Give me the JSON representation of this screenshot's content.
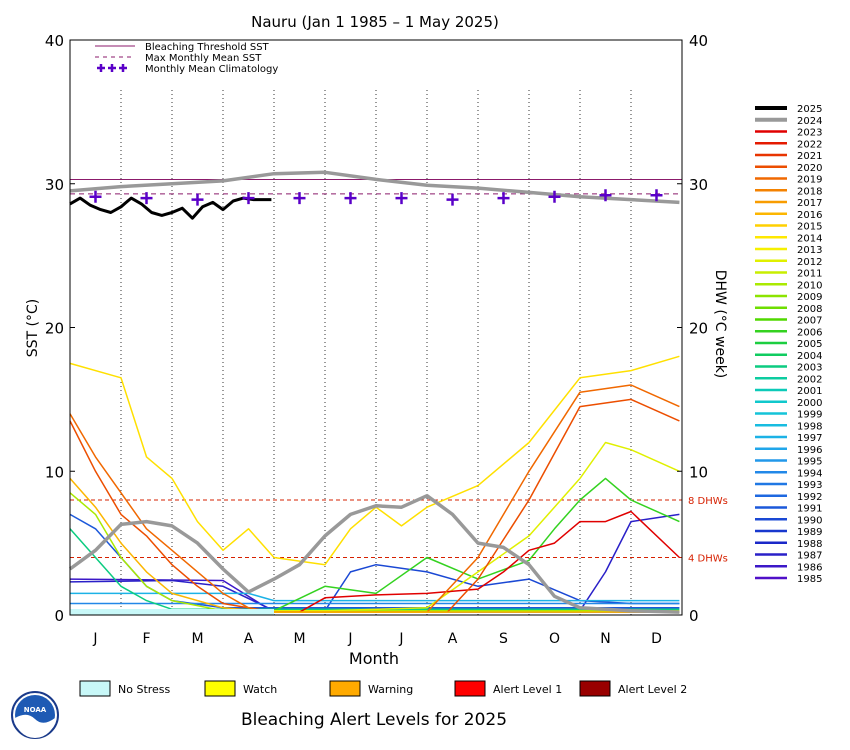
{
  "chart_data": {
    "type": "line",
    "title": "Nauru      (Jan 1 1985 – 1 May 2025)",
    "xlabel": "Month",
    "ylabel_left": "SST (°C)",
    "ylabel_right": "DHW (°C week)",
    "ylim": [
      0,
      40
    ],
    "yticks": [
      "0",
      "10",
      "20",
      "30",
      "40"
    ],
    "grid": "vertical dotted lines between months",
    "months": [
      "J",
      "F",
      "M",
      "A",
      "M",
      "J",
      "J",
      "A",
      "S",
      "O",
      "N",
      "D"
    ],
    "bleaching_threshold_sst": 30.3,
    "max_monthly_mean_sst": 29.3,
    "monthly_mean_climatology": [
      29.1,
      29.0,
      28.9,
      29.0,
      29.0,
      29.0,
      29.0,
      28.9,
      29.0,
      29.1,
      29.2,
      29.2
    ],
    "dhw_reference_lines": [
      {
        "value": 8,
        "label": "8 DHWs",
        "color": "#d62000"
      },
      {
        "value": 4,
        "label": "4 DHWs",
        "color": "#d62000"
      }
    ],
    "top_legend": [
      {
        "label": "Bleaching Threshold SST",
        "style": "solid",
        "color": "#8b1a6b"
      },
      {
        "label": "Max Monthly Mean SST",
        "style": "dashed",
        "color": "#8b1a6b"
      },
      {
        "label": "Monthly Mean Climatology",
        "style": "plus",
        "color": "#5a00c8"
      }
    ],
    "year_legend": [
      {
        "year": "2025",
        "color": "#000000"
      },
      {
        "year": "2024",
        "color": "#999999"
      },
      {
        "year": "2023",
        "color": "#e00000"
      },
      {
        "year": "2022",
        "color": "#e41a00"
      },
      {
        "year": "2021",
        "color": "#e83400"
      },
      {
        "year": "2020",
        "color": "#ec4e00"
      },
      {
        "year": "2019",
        "color": "#f06800"
      },
      {
        "year": "2018",
        "color": "#f48200"
      },
      {
        "year": "2017",
        "color": "#f89c00"
      },
      {
        "year": "2016",
        "color": "#fcb600"
      },
      {
        "year": "2015",
        "color": "#ffd000"
      },
      {
        "year": "2014",
        "color": "#ffe800"
      },
      {
        "year": "2013",
        "color": "#f6f000"
      },
      {
        "year": "2012",
        "color": "#e0f000"
      },
      {
        "year": "2011",
        "color": "#c8ee00"
      },
      {
        "year": "2010",
        "color": "#aaea00"
      },
      {
        "year": "2009",
        "color": "#8ce400"
      },
      {
        "year": "2008",
        "color": "#6ede00"
      },
      {
        "year": "2007",
        "color": "#50d800"
      },
      {
        "year": "2006",
        "color": "#34d220"
      },
      {
        "year": "2005",
        "color": "#1cce40"
      },
      {
        "year": "2004",
        "color": "#10cc60"
      },
      {
        "year": "2003",
        "color": "#0ccc80"
      },
      {
        "year": "2002",
        "color": "#0ccca0"
      },
      {
        "year": "2001",
        "color": "#0ccab8"
      },
      {
        "year": "2000",
        "color": "#10c8cc"
      },
      {
        "year": "1999",
        "color": "#14c4d8"
      },
      {
        "year": "1998",
        "color": "#18bce0"
      },
      {
        "year": "1997",
        "color": "#1cb2e6"
      },
      {
        "year": "1996",
        "color": "#20a6ea"
      },
      {
        "year": "1995",
        "color": "#2298ea"
      },
      {
        "year": "1994",
        "color": "#2288e8"
      },
      {
        "year": "1993",
        "color": "#2078e4"
      },
      {
        "year": "1992",
        "color": "#1e68e0"
      },
      {
        "year": "1991",
        "color": "#1c58da"
      },
      {
        "year": "1990",
        "color": "#1a48d4"
      },
      {
        "year": "1989",
        "color": "#1838ce"
      },
      {
        "year": "1988",
        "color": "#1a28c8"
      },
      {
        "year": "1987",
        "color": "#2a20c8"
      },
      {
        "year": "1986",
        "color": "#3c18c8"
      },
      {
        "year": "1985",
        "color": "#5010c8"
      }
    ],
    "series": [
      {
        "name": "2025",
        "role": "sst",
        "color": "#000000",
        "width": 3,
        "points": [
          [
            0.0,
            28.6
          ],
          [
            0.2,
            29.0
          ],
          [
            0.4,
            28.5
          ],
          [
            0.6,
            28.2
          ],
          [
            0.8,
            28.0
          ],
          [
            1.0,
            28.4
          ],
          [
            1.2,
            29.0
          ],
          [
            1.4,
            28.6
          ],
          [
            1.6,
            28.0
          ],
          [
            1.8,
            27.8
          ],
          [
            2.0,
            28.0
          ],
          [
            2.2,
            28.3
          ],
          [
            2.4,
            27.6
          ],
          [
            2.6,
            28.4
          ],
          [
            2.8,
            28.7
          ],
          [
            3.0,
            28.2
          ],
          [
            3.2,
            28.8
          ],
          [
            3.4,
            29.0
          ],
          [
            3.6,
            28.9
          ],
          [
            3.95,
            28.9
          ]
        ]
      },
      {
        "name": "2024",
        "role": "sst",
        "color": "#999999",
        "width": 3.5,
        "points": [
          [
            0,
            29.5
          ],
          [
            1,
            29.8
          ],
          [
            2,
            30.0
          ],
          [
            3,
            30.2
          ],
          [
            4,
            30.7
          ],
          [
            5,
            30.8
          ],
          [
            6,
            30.3
          ],
          [
            7,
            29.9
          ],
          [
            8,
            29.7
          ],
          [
            9,
            29.4
          ],
          [
            10,
            29.1
          ],
          [
            11,
            28.9
          ],
          [
            11.95,
            28.7
          ]
        ]
      },
      {
        "name": "2024",
        "role": "dhw",
        "color": "#999999",
        "width": 3.5,
        "points": [
          [
            0,
            3.2
          ],
          [
            0.5,
            4.5
          ],
          [
            1,
            6.3
          ],
          [
            1.5,
            6.5
          ],
          [
            2,
            6.2
          ],
          [
            2.5,
            5.0
          ],
          [
            3,
            3.2
          ],
          [
            3.5,
            1.6
          ],
          [
            4,
            2.5
          ],
          [
            4.5,
            3.5
          ],
          [
            5,
            5.5
          ],
          [
            5.5,
            7.0
          ],
          [
            6,
            7.6
          ],
          [
            6.5,
            7.5
          ],
          [
            7,
            8.3
          ],
          [
            7.5,
            7.0
          ],
          [
            8,
            5.0
          ],
          [
            8.5,
            4.7
          ],
          [
            9,
            3.5
          ],
          [
            9.5,
            1.3
          ],
          [
            10,
            0.5
          ],
          [
            11,
            0.3
          ],
          [
            11.95,
            0.2
          ]
        ]
      },
      {
        "name": "2015",
        "role": "dhw",
        "color": "#ffe000",
        "width": 1.5,
        "points": [
          [
            0,
            17.5
          ],
          [
            1,
            16.5
          ],
          [
            1.5,
            11
          ],
          [
            2,
            9.5
          ],
          [
            2.5,
            6.5
          ],
          [
            3,
            4.5
          ],
          [
            3.5,
            6
          ],
          [
            4,
            4
          ],
          [
            5,
            3.5
          ],
          [
            5.5,
            6
          ],
          [
            6,
            7.5
          ],
          [
            6.5,
            6.2
          ],
          [
            7,
            7.5
          ],
          [
            8,
            9
          ],
          [
            9,
            12
          ],
          [
            10,
            16.5
          ],
          [
            11,
            17
          ],
          [
            11.95,
            18
          ]
        ]
      },
      {
        "name": "2016",
        "role": "dhw",
        "color": "#fcb600",
        "width": 1.5,
        "points": [
          [
            0,
            9.5
          ],
          [
            0.5,
            7.5
          ],
          [
            1,
            5
          ],
          [
            1.5,
            3
          ],
          [
            2,
            1.5
          ],
          [
            3,
            0.5
          ],
          [
            4,
            0.2
          ],
          [
            11.95,
            0.2
          ]
        ]
      },
      {
        "name": "2019",
        "role": "dhw",
        "color": "#f06800",
        "width": 1.5,
        "points": [
          [
            0,
            14
          ],
          [
            0.5,
            11
          ],
          [
            1,
            8.5
          ],
          [
            1.5,
            6
          ],
          [
            2,
            4.5
          ],
          [
            2.5,
            3
          ],
          [
            3,
            1.5
          ],
          [
            3.5,
            0.5
          ],
          [
            4,
            0.2
          ],
          [
            7,
            0.2
          ],
          [
            8,
            4
          ],
          [
            9,
            10
          ],
          [
            10,
            15.5
          ],
          [
            11,
            16
          ],
          [
            11.95,
            14.5
          ]
        ]
      },
      {
        "name": "2020",
        "role": "dhw",
        "color": "#ec4e00",
        "width": 1.5,
        "points": [
          [
            0,
            13.5
          ],
          [
            0.5,
            10
          ],
          [
            1,
            7
          ],
          [
            1.5,
            5.5
          ],
          [
            2,
            3.5
          ],
          [
            2.5,
            2
          ],
          [
            3,
            0.8
          ],
          [
            4,
            0.2
          ],
          [
            7.4,
            0.2
          ],
          [
            8,
            2.5
          ],
          [
            9,
            8
          ],
          [
            10,
            14.5
          ],
          [
            11,
            15
          ],
          [
            11.95,
            13.5
          ]
        ]
      },
      {
        "name": "2023",
        "role": "dhw",
        "color": "#e00000",
        "width": 1.5,
        "points": [
          [
            0,
            0.2
          ],
          [
            4.5,
            0.2
          ],
          [
            5,
            1.2
          ],
          [
            6,
            1.4
          ],
          [
            7,
            1.5
          ],
          [
            8,
            1.8
          ],
          [
            8.5,
            3
          ],
          [
            9,
            4.5
          ],
          [
            9.5,
            5
          ],
          [
            10,
            6.5
          ],
          [
            10.5,
            6.5
          ],
          [
            11,
            7.2
          ],
          [
            11.95,
            4
          ]
        ]
      },
      {
        "name": "2012",
        "role": "dhw",
        "color": "#e0f000",
        "width": 1.5,
        "points": [
          [
            0,
            0.3
          ],
          [
            5,
            0.3
          ],
          [
            7,
            0.5
          ],
          [
            8,
            3
          ],
          [
            9,
            5.5
          ],
          [
            10,
            9.5
          ],
          [
            10.5,
            12
          ],
          [
            11,
            11.5
          ],
          [
            11.95,
            10
          ]
        ]
      },
      {
        "name": "2010",
        "role": "dhw",
        "color": "#aaea00",
        "width": 1.5,
        "points": [
          [
            0,
            8.5
          ],
          [
            0.5,
            7
          ],
          [
            1,
            4
          ],
          [
            1.5,
            2
          ],
          [
            2,
            1
          ],
          [
            3,
            0.3
          ],
          [
            11.95,
            0.3
          ]
        ]
      },
      {
        "name": "2006",
        "role": "dhw",
        "color": "#34d220",
        "width": 1.5,
        "points": [
          [
            0,
            0.3
          ],
          [
            4,
            0.3
          ],
          [
            5,
            2
          ],
          [
            6,
            1.5
          ],
          [
            7,
            4
          ],
          [
            8,
            2.5
          ],
          [
            9,
            3.8
          ],
          [
            9.5,
            6
          ],
          [
            10,
            8
          ],
          [
            10.5,
            9.5
          ],
          [
            11,
            8
          ],
          [
            11.95,
            6.5
          ]
        ]
      },
      {
        "name": "2003",
        "role": "dhw",
        "color": "#0ccc80",
        "width": 1.5,
        "points": [
          [
            0,
            6
          ],
          [
            0.5,
            4
          ],
          [
            1,
            2
          ],
          [
            1.5,
            1
          ],
          [
            2,
            0.4
          ],
          [
            11.95,
            0.4
          ]
        ]
      },
      {
        "name": "1997",
        "role": "dhw",
        "color": "#1cb2e6",
        "width": 1.5,
        "points": [
          [
            0,
            1.5
          ],
          [
            3.5,
            1.5
          ],
          [
            4,
            1.0
          ],
          [
            11.95,
            1.0
          ]
        ]
      },
      {
        "name": "1994",
        "role": "dhw",
        "color": "#2288e8",
        "width": 1.5,
        "points": [
          [
            0,
            0.8
          ],
          [
            11.95,
            0.8
          ]
        ]
      },
      {
        "name": "1991",
        "role": "dhw",
        "color": "#1c58da",
        "width": 1.5,
        "points": [
          [
            0,
            7
          ],
          [
            0.5,
            6
          ],
          [
            1,
            4
          ],
          [
            1.5,
            2
          ],
          [
            2,
            1
          ],
          [
            3,
            0.5
          ],
          [
            11.95,
            0.5
          ]
        ]
      },
      {
        "name": "1990",
        "role": "dhw",
        "color": "#1a48d4",
        "width": 1.5,
        "points": [
          [
            0,
            0.3
          ],
          [
            5,
            0.3
          ],
          [
            5.5,
            3
          ],
          [
            6,
            3.5
          ],
          [
            7,
            3
          ],
          [
            8,
            2
          ],
          [
            9,
            2.5
          ],
          [
            10,
            1
          ],
          [
            11,
            0.8
          ],
          [
            11.95,
            0.8
          ]
        ]
      },
      {
        "name": "1987",
        "role": "dhw",
        "color": "#2a20c8",
        "width": 1.5,
        "points": [
          [
            0,
            2.3
          ],
          [
            2,
            2.4
          ],
          [
            3,
            2
          ],
          [
            4,
            0.3
          ],
          [
            10,
            0.3
          ],
          [
            10.5,
            3
          ],
          [
            11,
            6.5
          ],
          [
            11.95,
            7
          ]
        ]
      },
      {
        "name": "1986",
        "role": "dhw",
        "color": "#3c18c8",
        "width": 1.5,
        "points": [
          [
            0,
            2.5
          ],
          [
            3,
            2.4
          ],
          [
            4,
            0.2
          ],
          [
            11.95,
            0.2
          ]
        ]
      }
    ]
  },
  "alert_legend": {
    "title": "Bleaching Alert Levels for 2025",
    "items": [
      {
        "label": "No Stress",
        "color": "#c8f8f8"
      },
      {
        "label": "Watch",
        "color": "#ffff00"
      },
      {
        "label": "Warning",
        "color": "#ffaa00"
      },
      {
        "label": "Alert Level 1",
        "color": "#ff0000"
      },
      {
        "label": "Alert Level 2",
        "color": "#990000"
      }
    ]
  },
  "alert_strip": [
    {
      "from_month": 0,
      "to_month": 4,
      "color": "#c8f8f8"
    }
  ],
  "logo_text": "NOAA"
}
